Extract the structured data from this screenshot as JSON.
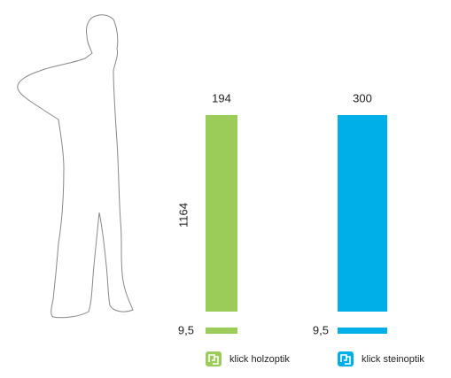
{
  "height_label": "1164",
  "items": [
    {
      "width_label": "194",
      "thickness_label": "9,5",
      "legend": "klick holzoptik"
    },
    {
      "width_label": "300",
      "thickness_label": "9,5",
      "legend": "klick steinoptik"
    }
  ]
}
